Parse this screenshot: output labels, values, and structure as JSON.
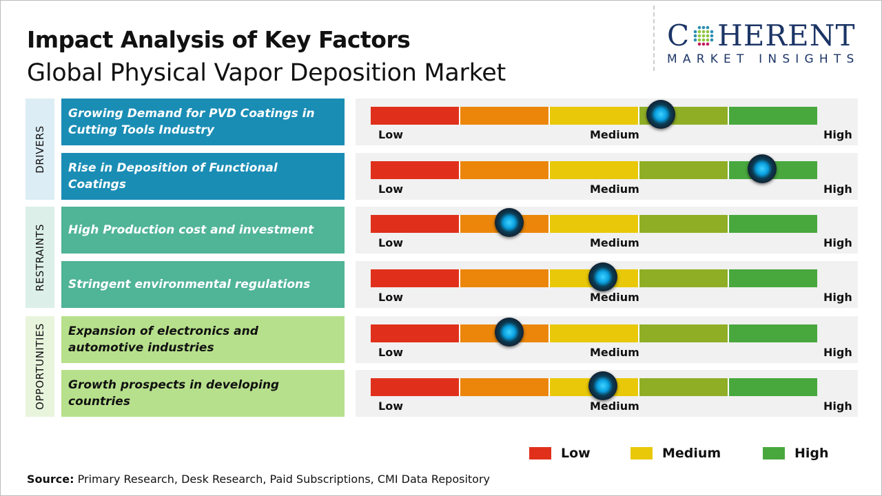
{
  "title": "Impact Analysis of Key Factors",
  "subtitle": "Global Physical Vapor Deposition Market",
  "logo": {
    "main_left": "C",
    "main_right": "HERENT",
    "sub": "MARKET INSIGHTS"
  },
  "scale": {
    "low": "Low",
    "medium": "Medium",
    "high": "High"
  },
  "segment_colors": [
    "#e0301c",
    "#ec860a",
    "#e8c808",
    "#8fae26",
    "#48a83e"
  ],
  "groups": [
    {
      "label": "DRIVERS",
      "bg": "#dcedf5",
      "color": "#1a8db5",
      "text": "#ffffff",
      "factors": [
        {
          "text": "Growing Demand for PVD Coatings in Cutting Tools Industry",
          "impact": 0.65
        },
        {
          "text": "Rise in Deposition of Functional Coatings",
          "impact": 0.877
        }
      ]
    },
    {
      "label": "RESTRAINTS",
      "bg": "#dcefe9",
      "color": "#50b497",
      "text": "#ffffff",
      "factors": [
        {
          "text": "High Production cost and investment",
          "impact": 0.31
        },
        {
          "text": "Stringent environmental regulations",
          "impact": 0.52
        }
      ]
    },
    {
      "label": "OPPORTUNITIES",
      "bg": "#e9f4dd",
      "color": "#b7e08c",
      "text": "#111111",
      "factors": [
        {
          "text": "Expansion of electronics and automotive industries",
          "impact": 0.31
        },
        {
          "text": "Growth prospects in developing countries",
          "impact": 0.52
        }
      ]
    }
  ],
  "legend": [
    {
      "label": "Low",
      "color": "#e0301c"
    },
    {
      "label": "Medium",
      "color": "#e8c808"
    },
    {
      "label": "High",
      "color": "#48a83e"
    }
  ],
  "source": {
    "label": "Source:",
    "text": " Primary Research, Desk Research, Paid Subscriptions, CMI Data Repository"
  }
}
